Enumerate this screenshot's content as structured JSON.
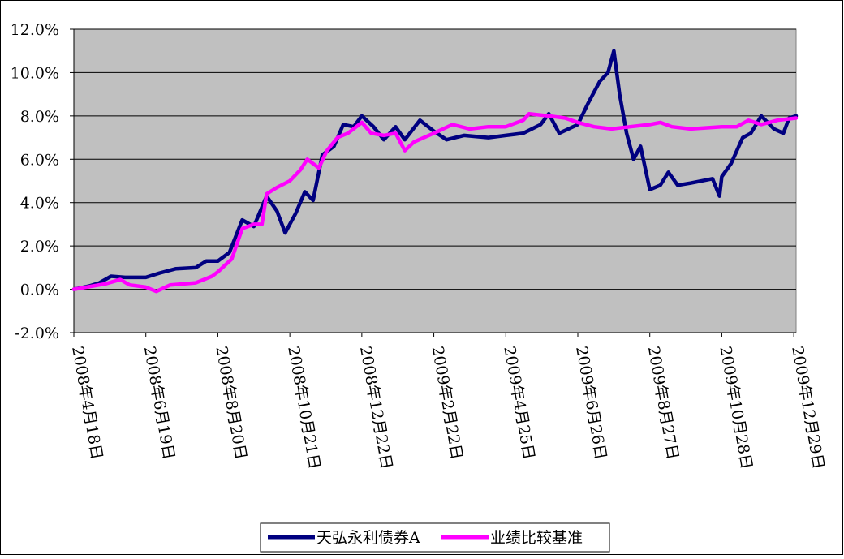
{
  "chart_data": {
    "type": "line",
    "title": "",
    "xlabel": "",
    "ylabel": "",
    "y_tick_labels": [
      "-2.0%",
      "0.0%",
      "2.0%",
      "4.0%",
      "6.0%",
      "8.0%",
      "10.0%",
      "12.0%"
    ],
    "y_ticks": [
      -2,
      0,
      2,
      4,
      6,
      8,
      10,
      12
    ],
    "ylim": [
      -2,
      12
    ],
    "x_tick_labels": [
      "2008年4月18日",
      "2008年6月19日",
      "2008年8月20日",
      "2008年10月21日",
      "2008年12月22日",
      "2009年2月22日",
      "2009年4月25日",
      "2009年6月26日",
      "2009年8月27日",
      "2009年10月28日",
      "2009年12月29日"
    ],
    "x_ticks": [
      "2008-04-18",
      "2008-06-19",
      "2008-08-20",
      "2008-10-21",
      "2008-12-22",
      "2009-02-22",
      "2009-04-25",
      "2009-06-26",
      "2009-08-27",
      "2009-10-28",
      "2009-12-29"
    ],
    "xlim": [
      "2008-04-18",
      "2009-12-31"
    ],
    "grid": true,
    "plot_background": "#C0C0C0",
    "legend_position": "bottom",
    "series": [
      {
        "name": "天弘永利债券A",
        "color": "#000080",
        "points": [
          [
            "2008-04-18",
            0.0
          ],
          [
            "2008-05-01",
            0.15
          ],
          [
            "2008-05-10",
            0.3
          ],
          [
            "2008-05-20",
            0.6
          ],
          [
            "2008-06-01",
            0.55
          ],
          [
            "2008-06-19",
            0.55
          ],
          [
            "2008-07-01",
            0.75
          ],
          [
            "2008-07-15",
            0.95
          ],
          [
            "2008-08-01",
            1.0
          ],
          [
            "2008-08-10",
            1.3
          ],
          [
            "2008-08-20",
            1.3
          ],
          [
            "2008-08-30",
            1.7
          ],
          [
            "2008-09-10",
            3.2
          ],
          [
            "2008-09-20",
            2.9
          ],
          [
            "2008-10-01",
            4.3
          ],
          [
            "2008-10-10",
            3.6
          ],
          [
            "2008-10-17",
            2.6
          ],
          [
            "2008-10-26",
            3.5
          ],
          [
            "2008-11-03",
            4.5
          ],
          [
            "2008-11-10",
            4.1
          ],
          [
            "2008-11-18",
            6.2
          ],
          [
            "2008-11-28",
            6.6
          ],
          [
            "2008-12-06",
            7.6
          ],
          [
            "2008-12-15",
            7.5
          ],
          [
            "2008-12-22",
            8.0
          ],
          [
            "2009-01-01",
            7.5
          ],
          [
            "2009-01-10",
            6.9
          ],
          [
            "2009-01-20",
            7.5
          ],
          [
            "2009-01-28",
            6.9
          ],
          [
            "2009-02-10",
            7.8
          ],
          [
            "2009-02-22",
            7.3
          ],
          [
            "2009-03-05",
            6.9
          ],
          [
            "2009-03-20",
            7.1
          ],
          [
            "2009-04-10",
            7.0
          ],
          [
            "2009-04-25",
            7.1
          ],
          [
            "2009-05-10",
            7.2
          ],
          [
            "2009-05-25",
            7.6
          ],
          [
            "2009-06-01",
            8.1
          ],
          [
            "2009-06-10",
            7.2
          ],
          [
            "2009-06-26",
            7.6
          ],
          [
            "2009-07-05",
            8.6
          ],
          [
            "2009-07-15",
            9.6
          ],
          [
            "2009-07-22",
            10.0
          ],
          [
            "2009-07-27",
            11.0
          ],
          [
            "2009-08-01",
            9.0
          ],
          [
            "2009-08-07",
            7.2
          ],
          [
            "2009-08-13",
            6.0
          ],
          [
            "2009-08-19",
            6.6
          ],
          [
            "2009-08-27",
            4.6
          ],
          [
            "2009-09-05",
            4.8
          ],
          [
            "2009-09-12",
            5.4
          ],
          [
            "2009-09-20",
            4.8
          ],
          [
            "2009-10-01",
            4.9
          ],
          [
            "2009-10-20",
            5.1
          ],
          [
            "2009-10-26",
            4.3
          ],
          [
            "2009-10-28",
            5.2
          ],
          [
            "2009-11-05",
            5.8
          ],
          [
            "2009-11-15",
            7.0
          ],
          [
            "2009-11-22",
            7.2
          ],
          [
            "2009-12-01",
            8.0
          ],
          [
            "2009-12-12",
            7.4
          ],
          [
            "2009-12-20",
            7.2
          ],
          [
            "2009-12-25",
            7.9
          ],
          [
            "2009-12-31",
            8.0
          ]
        ]
      },
      {
        "name": "业绩比较基准",
        "color": "#FF00FF",
        "points": [
          [
            "2008-04-18",
            0.0
          ],
          [
            "2008-05-15",
            0.25
          ],
          [
            "2008-05-28",
            0.45
          ],
          [
            "2008-06-05",
            0.2
          ],
          [
            "2008-06-19",
            0.1
          ],
          [
            "2008-06-28",
            -0.1
          ],
          [
            "2008-07-10",
            0.2
          ],
          [
            "2008-08-01",
            0.3
          ],
          [
            "2008-08-15",
            0.6
          ],
          [
            "2008-08-20",
            0.8
          ],
          [
            "2008-09-01",
            1.4
          ],
          [
            "2008-09-10",
            2.8
          ],
          [
            "2008-09-20",
            3.0
          ],
          [
            "2008-09-27",
            3.0
          ],
          [
            "2008-10-01",
            4.4
          ],
          [
            "2008-10-10",
            4.7
          ],
          [
            "2008-10-21",
            5.0
          ],
          [
            "2008-10-30",
            5.5
          ],
          [
            "2008-11-05",
            6.0
          ],
          [
            "2008-11-15",
            5.6
          ],
          [
            "2008-11-22",
            6.4
          ],
          [
            "2008-12-01",
            7.0
          ],
          [
            "2008-12-10",
            7.2
          ],
          [
            "2008-12-22",
            7.7
          ],
          [
            "2008-12-30",
            7.2
          ],
          [
            "2009-01-10",
            7.1
          ],
          [
            "2009-01-20",
            7.2
          ],
          [
            "2009-01-28",
            6.4
          ],
          [
            "2009-02-05",
            6.8
          ],
          [
            "2009-02-22",
            7.2
          ],
          [
            "2009-03-10",
            7.6
          ],
          [
            "2009-03-25",
            7.4
          ],
          [
            "2009-04-10",
            7.5
          ],
          [
            "2009-04-25",
            7.5
          ],
          [
            "2009-05-10",
            7.8
          ],
          [
            "2009-05-15",
            8.1
          ],
          [
            "2009-06-01",
            8.0
          ],
          [
            "2009-06-15",
            7.9
          ],
          [
            "2009-06-26",
            7.7
          ],
          [
            "2009-07-10",
            7.5
          ],
          [
            "2009-07-25",
            7.4
          ],
          [
            "2009-08-10",
            7.5
          ],
          [
            "2009-08-27",
            7.6
          ],
          [
            "2009-09-05",
            7.7
          ],
          [
            "2009-09-15",
            7.5
          ],
          [
            "2009-10-01",
            7.4
          ],
          [
            "2009-10-28",
            7.5
          ],
          [
            "2009-11-10",
            7.5
          ],
          [
            "2009-11-20",
            7.8
          ],
          [
            "2009-12-01",
            7.6
          ],
          [
            "2009-12-15",
            7.8
          ],
          [
            "2009-12-31",
            7.9
          ]
        ]
      }
    ]
  }
}
